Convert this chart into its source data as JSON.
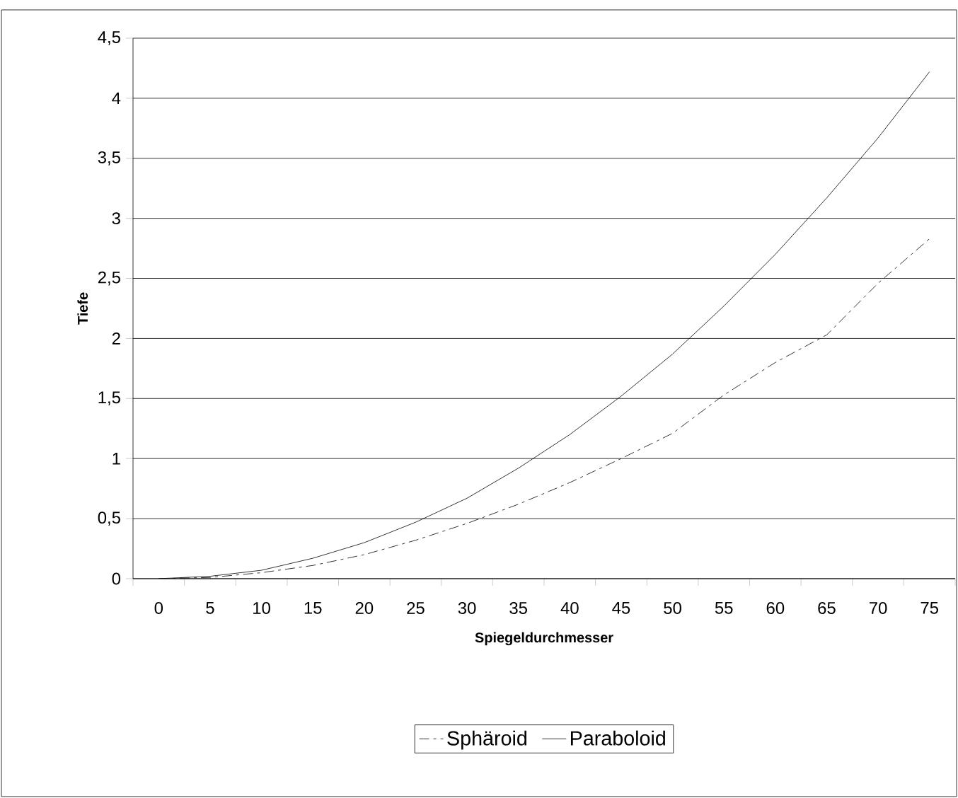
{
  "chart_data": {
    "type": "line",
    "xlabel": "Spiegeldurchmesser",
    "ylabel": "Tiefe",
    "categories": [
      "0",
      "5",
      "10",
      "15",
      "20",
      "25",
      "30",
      "35",
      "40",
      "45",
      "50",
      "55",
      "60",
      "65",
      "70",
      "75"
    ],
    "series": [
      {
        "name": "Sphäroid",
        "color": "#000000",
        "line_style": "dashdot",
        "values": [
          0,
          0.01,
          0.05,
          0.11,
          0.2,
          0.32,
          0.46,
          0.62,
          0.8,
          1.0,
          1.21,
          1.53,
          1.8,
          2.03,
          2.46,
          2.83
        ]
      },
      {
        "name": "Paraboloid",
        "color": "#000000",
        "line_style": "solid",
        "values": [
          0,
          0.02,
          0.07,
          0.17,
          0.3,
          0.47,
          0.67,
          0.92,
          1.2,
          1.52,
          1.87,
          2.27,
          2.7,
          3.17,
          3.67,
          4.22
        ]
      }
    ],
    "ylim": [
      0,
      4.5
    ],
    "yticks": [
      0,
      {
        "value": 0.5,
        "label": "0,5"
      },
      1,
      {
        "value": 1.5,
        "label": "1,5"
      },
      2,
      {
        "value": 2.5,
        "label": "2,5"
      },
      3,
      {
        "value": 3.5,
        "label": "3,5"
      },
      4,
      {
        "value": 4.5,
        "label": "4,5"
      }
    ],
    "grid": "y",
    "legend": "bottom",
    "marker": "none"
  }
}
